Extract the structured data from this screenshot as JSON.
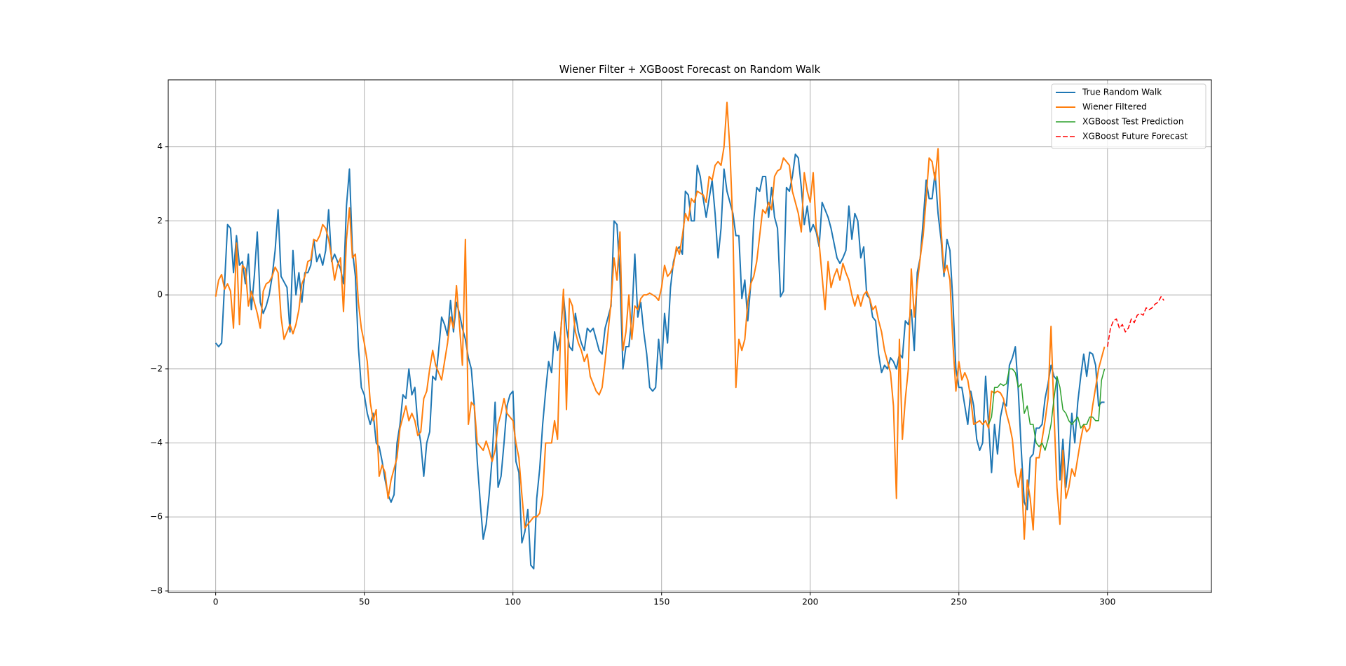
{
  "chart_data": {
    "type": "line",
    "title": "Wiener Filter + XGBoost Forecast on Random Walk",
    "x": [
      0,
      1,
      2,
      3,
      4,
      5,
      6,
      7,
      8,
      9,
      10,
      11,
      12,
      13,
      14,
      15,
      16,
      17,
      18,
      19,
      20,
      21,
      22,
      23,
      24,
      25,
      26,
      27,
      28,
      29,
      30,
      31,
      32,
      33,
      34,
      35,
      36,
      37,
      38,
      39,
      40,
      41,
      42,
      43,
      44,
      45,
      46,
      47,
      48,
      49,
      50,
      51,
      52,
      53,
      54,
      55,
      56,
      57,
      58,
      59,
      60,
      61,
      62,
      63,
      64,
      65,
      66,
      67,
      68,
      69,
      70,
      71,
      72,
      73,
      74,
      75,
      76,
      77,
      78,
      79,
      80,
      81,
      82,
      83,
      84,
      85,
      86,
      87,
      88,
      89,
      90,
      91,
      92,
      93,
      94,
      95,
      96,
      97,
      98,
      99,
      100,
      101,
      102,
      103,
      104,
      105,
      106,
      107,
      108,
      109,
      110,
      111,
      112,
      113,
      114,
      115,
      116,
      117,
      118,
      119,
      120,
      121,
      122,
      123,
      124,
      125,
      126,
      127,
      128,
      129,
      130,
      131,
      132,
      133,
      134,
      135,
      136,
      137,
      138,
      139,
      140,
      141,
      142,
      143,
      144,
      145,
      146,
      147,
      148,
      149,
      150,
      151,
      152,
      153,
      154,
      155,
      156,
      157,
      158,
      159,
      160,
      161,
      162,
      163,
      164,
      165,
      166,
      167,
      168,
      169,
      170,
      171,
      172,
      173,
      174,
      175,
      176,
      177,
      178,
      179,
      180,
      181,
      182,
      183,
      184,
      185,
      186,
      187,
      188,
      189,
      190,
      191,
      192,
      193,
      194,
      195,
      196,
      197,
      198,
      199,
      200,
      201,
      202,
      203,
      204,
      205,
      206,
      207,
      208,
      209,
      210,
      211,
      212,
      213,
      214,
      215,
      216,
      217,
      218,
      219,
      220,
      221,
      222,
      223,
      224,
      225,
      226,
      227,
      228,
      229,
      230,
      231,
      232,
      233,
      234,
      235,
      236,
      237,
      238,
      239,
      240,
      241,
      242,
      243,
      244,
      245,
      246,
      247,
      248,
      249,
      250,
      251,
      252,
      253,
      254,
      255,
      256,
      257,
      258,
      259,
      260,
      261,
      262,
      263,
      264,
      265,
      266,
      267,
      268,
      269,
      270,
      271,
      272,
      273,
      274,
      275,
      276,
      277,
      278,
      279,
      280,
      281,
      282,
      283,
      284,
      285,
      286,
      287,
      288,
      289,
      290,
      291,
      292,
      293,
      294,
      295,
      296,
      297,
      298,
      299
    ],
    "series": [
      {
        "name": "True Random Walk",
        "color": "#1f77b4",
        "linewidth": 2,
        "linestyle": "solid",
        "values": [
          -1.3,
          -1.4,
          -1.3,
          0.3,
          1.9,
          1.8,
          0.6,
          1.6,
          0.8,
          0.9,
          0.3,
          1.1,
          -0.4,
          0.5,
          1.7,
          -0.2,
          -0.5,
          -0.3,
          0,
          0.5,
          1.2,
          2.3,
          0.5,
          0.35,
          0.2,
          -1.0,
          1.2,
          0.0,
          0.6,
          -0.2,
          0.6,
          0.6,
          0.8,
          1.5,
          0.9,
          1.1,
          0.8,
          1.2,
          2.3,
          0.9,
          1.1,
          0.9,
          0.7,
          0.3,
          2.4,
          3.4,
          1.2,
          0.5,
          -1.4,
          -2.5,
          -2.7,
          -3.2,
          -3.5,
          -3.2,
          -4.0,
          -4.1,
          -4.5,
          -5.0,
          -5.4,
          -5.6,
          -5.4,
          -4.0,
          -3.5,
          -2.7,
          -2.8,
          -2.0,
          -2.7,
          -2.5,
          -3.5,
          -4.0,
          -4.9,
          -4.0,
          -3.7,
          -2.2,
          -2.3,
          -1.5,
          -0.6,
          -0.8,
          -1.1,
          -0.15,
          -1.0,
          -0.2,
          -0.5,
          -0.9,
          -1.2,
          -1.7,
          -2.0,
          -3.0,
          -4.5,
          -5.6,
          -6.6,
          -6.2,
          -5.4,
          -4.4,
          -2.9,
          -5.2,
          -4.9,
          -4.0,
          -3.0,
          -2.7,
          -2.6,
          -4.5,
          -4.8,
          -6.7,
          -6.4,
          -5.8,
          -7.3,
          -7.4,
          -5.5,
          -4.7,
          -3.5,
          -2.6,
          -1.8,
          -2.1,
          -1.0,
          -1.5,
          -1.1,
          0.0,
          -0.9,
          -1.4,
          -1.5,
          -0.5,
          -1.0,
          -1.3,
          -1.5,
          -0.9,
          -1.0,
          -0.9,
          -1.2,
          -1.5,
          -1.6,
          -0.9,
          -0.6,
          -0.3,
          2.0,
          1.9,
          0.5,
          -2.0,
          -1.4,
          -1.4,
          -0.6,
          1.1,
          -0.6,
          -0.2,
          -1.0,
          -1.6,
          -2.5,
          -2.6,
          -2.5,
          -1.2,
          -2.0,
          -0.5,
          -1.3,
          0.2,
          0.9,
          1.2,
          1.3,
          1.1,
          2.8,
          2.7,
          2.0,
          2.0,
          3.5,
          3.2,
          2.6,
          2.1,
          2.6,
          3.1,
          2.2,
          1.0,
          1.8,
          3.4,
          2.8,
          2.5,
          2.2,
          1.6,
          1.6,
          -0.1,
          0.4,
          -0.7,
          0.3,
          2.0,
          2.9,
          2.8,
          3.2,
          3.2,
          2.1,
          2.9,
          2.1,
          1.8,
          -0.05,
          0.1,
          2.9,
          2.8,
          3.2,
          3.8,
          3.7,
          2.9,
          1.9,
          2.4,
          1.7,
          1.9,
          1.7,
          1.3,
          2.5,
          2.3,
          2.1,
          1.8,
          1.4,
          1.0,
          0.85,
          1.0,
          1.2,
          2.4,
          1.5,
          2.2,
          2.0,
          1.0,
          1.3,
          0.0,
          -0.1,
          -0.6,
          -0.7,
          -1.6,
          -2.1,
          -1.9,
          -2.0,
          -1.7,
          -1.8,
          -2.0,
          -1.6,
          -1.7,
          -0.7,
          -0.8,
          -0.4,
          -1.5,
          0.6,
          1.0,
          2.0,
          3.1,
          2.6,
          2.6,
          3.3,
          2.2,
          1.5,
          0.5,
          1.5,
          1.2,
          -0.2,
          -2.0,
          -2.5,
          -2.5,
          -3.0,
          -3.5,
          -2.6,
          -3.0,
          -3.9,
          -4.2,
          -4.0,
          -2.2,
          -3.5,
          -4.8,
          -3.5,
          -4.3,
          -3.3,
          -2.9,
          -3.0,
          -1.9,
          -1.7,
          -1.4,
          -2.6,
          -4.2,
          -5.6,
          -5.8,
          -4.4,
          -4.3,
          -3.6,
          -3.6,
          -3.5,
          -2.8,
          -2.4,
          -1.9,
          -2.2,
          -2.3,
          -5.0,
          -3.9,
          -5.2,
          -4.4,
          -3.2,
          -4.0,
          -2.9,
          -2.2,
          -1.6,
          -2.2,
          -1.55,
          -1.6,
          -1.9,
          -3.0,
          -2.9,
          -2.9
        ]
      },
      {
        "name": "Wiener Filtered",
        "color": "#ff7f0e",
        "linewidth": 2,
        "linestyle": "solid",
        "values": [
          -0.05,
          0.4,
          0.55,
          0.15,
          0.3,
          0.1,
          -0.9,
          1.4,
          -0.8,
          0.8,
          0.7,
          -0.3,
          0.1,
          -0.2,
          -0.5,
          -0.9,
          0.1,
          0.3,
          0.35,
          0.5,
          0.75,
          0.6,
          -0.6,
          -1.2,
          -1.0,
          -0.8,
          -1.05,
          -0.8,
          -0.4,
          0.3,
          0.5,
          0.9,
          0.95,
          1.5,
          1.45,
          1.6,
          1.9,
          1.8,
          1.5,
          1.0,
          0.4,
          0.8,
          1.0,
          -0.45,
          1.5,
          2.35,
          1.0,
          1.1,
          -0.2,
          -0.9,
          -1.3,
          -1.8,
          -2.9,
          -3.4,
          -3.1,
          -4.9,
          -4.6,
          -4.8,
          -5.5,
          -5.0,
          -4.7,
          -4.4,
          -3.6,
          -3.3,
          -3.0,
          -3.4,
          -3.2,
          -3.4,
          -3.8,
          -3.7,
          -2.8,
          -2.6,
          -2.0,
          -1.5,
          -1.9,
          -2.1,
          -2.3,
          -1.8,
          -1.3,
          -0.6,
          -0.9,
          0.25,
          -0.8,
          -1.9,
          1.5,
          -3.5,
          -2.9,
          -3.0,
          -4.0,
          -4.1,
          -4.2,
          -3.95,
          -4.2,
          -4.5,
          -4.2,
          -3.5,
          -3.2,
          -2.8,
          -3.2,
          -3.3,
          -3.4,
          -4.0,
          -4.4,
          -5.4,
          -6.3,
          -6.2,
          -6.1,
          -6.0,
          -6.0,
          -5.9,
          -5.4,
          -4.0,
          -4.0,
          -4.0,
          -3.4,
          -3.9,
          -1.1,
          0.15,
          -3.1,
          -0.1,
          -0.3,
          -1.0,
          -1.3,
          -1.5,
          -1.8,
          -1.6,
          -2.2,
          -2.4,
          -2.6,
          -2.7,
          -2.5,
          -1.8,
          -1.0,
          -0.2,
          1.0,
          0.4,
          1.7,
          -1.5,
          -1.0,
          0.0,
          -1.2,
          -0.3,
          -0.4,
          -0.1,
          0.0,
          0.0,
          0.05,
          0.0,
          -0.05,
          -0.15,
          0.2,
          0.8,
          0.5,
          0.6,
          0.8,
          1.3,
          1.1,
          1.6,
          2.2,
          2.0,
          2.6,
          2.5,
          2.8,
          2.75,
          2.7,
          2.5,
          3.2,
          3.1,
          3.5,
          3.6,
          3.5,
          4.0,
          5.2,
          3.9,
          1.8,
          -2.5,
          -1.2,
          -1.5,
          -1.2,
          -0.2,
          0.3,
          0.5,
          0.9,
          1.6,
          2.3,
          2.2,
          2.5,
          2.3,
          3.2,
          3.35,
          3.4,
          3.7,
          3.6,
          3.5,
          2.8,
          2.5,
          2.2,
          1.7,
          3.3,
          2.8,
          2.5,
          3.3,
          1.8,
          1.4,
          0.5,
          -0.4,
          0.9,
          0.2,
          0.5,
          0.7,
          0.4,
          0.85,
          0.6,
          0.4,
          0.0,
          -0.3,
          0.0,
          -0.3,
          0.0,
          0.1,
          -0.1,
          -0.4,
          -0.3,
          -0.7,
          -1.0,
          -1.5,
          -1.8,
          -2.1,
          -3.0,
          -5.5,
          -1.2,
          -3.9,
          -2.8,
          -2.0,
          0.7,
          -0.6,
          0.3,
          1.0,
          1.6,
          2.6,
          3.7,
          3.6,
          3.1,
          3.95,
          1.8,
          0.6,
          0.8,
          0.4,
          -1.3,
          -2.6,
          -1.8,
          -2.3,
          -2.1,
          -2.3,
          -2.8,
          -3.5,
          -3.45,
          -3.4,
          -3.5,
          -3.4,
          -3.6,
          -2.6,
          -2.65,
          -2.6,
          -2.65,
          -2.8,
          -3.2,
          -3.5,
          -3.9,
          -4.8,
          -5.2,
          -4.7,
          -6.6,
          -5.0,
          -5.5,
          -6.35,
          -4.4,
          -4.4,
          -3.9,
          -3.4,
          -2.8,
          -0.85,
          -3.2,
          -5.2,
          -6.2,
          -4.2,
          -5.5,
          -5.2,
          -4.7,
          -4.9,
          -4.4,
          -3.9,
          -3.5,
          -3.7,
          -3.6,
          -3.0,
          -2.5,
          -2.0,
          -1.7,
          -1.4
        ]
      },
      {
        "name": "XGBoost Test Prediction",
        "color": "#2ca02c",
        "linewidth": 1.5,
        "linestyle": "solid",
        "x": [
          260,
          261,
          262,
          263,
          264,
          265,
          266,
          267,
          268,
          269,
          270,
          271,
          272,
          273,
          274,
          275,
          276,
          277,
          278,
          279,
          280,
          281,
          282,
          283,
          284,
          285,
          286,
          287,
          288,
          289,
          290,
          291,
          292,
          293,
          294,
          295,
          296,
          297,
          298,
          299
        ],
        "values": [
          -3.5,
          -3.3,
          -2.5,
          -2.5,
          -2.4,
          -2.45,
          -2.4,
          -2.0,
          -2.0,
          -2.1,
          -2.5,
          -2.4,
          -3.2,
          -3.0,
          -3.5,
          -3.5,
          -4.0,
          -4.1,
          -4.0,
          -4.2,
          -3.9,
          -3.5,
          -2.8,
          -2.2,
          -2.5,
          -3.1,
          -3.2,
          -3.4,
          -3.5,
          -3.4,
          -3.3,
          -3.6,
          -3.5,
          -3.5,
          -3.3,
          -3.3,
          -3.4,
          -3.4,
          -2.3,
          -2.0
        ]
      },
      {
        "name": "XGBoost Future Forecast",
        "color": "#ff0000",
        "linewidth": 1.5,
        "linestyle": "dashed",
        "x": [
          300,
          301,
          302,
          303,
          304,
          305,
          306,
          307,
          308,
          309,
          310,
          311,
          312,
          313,
          314,
          315,
          316,
          317,
          318,
          319
        ],
        "values": [
          -1.4,
          -0.9,
          -0.7,
          -0.65,
          -0.9,
          -0.8,
          -1.0,
          -0.9,
          -0.65,
          -0.75,
          -0.55,
          -0.5,
          -0.55,
          -0.35,
          -0.4,
          -0.35,
          -0.25,
          -0.2,
          -0.05,
          -0.15
        ]
      }
    ],
    "xlim": [
      -15.95,
      334.95
    ],
    "ylim": [
      -8.04,
      5.81
    ],
    "xticks": [
      0,
      50,
      100,
      150,
      200,
      250,
      300
    ],
    "yticks": [
      {
        "value": -8,
        "label": "−8"
      },
      {
        "value": -6,
        "label": "−6"
      },
      {
        "value": -4,
        "label": "−4"
      },
      {
        "value": -2,
        "label": "−2"
      },
      0,
      2,
      4
    ],
    "grid": true,
    "legend": "upper right"
  }
}
